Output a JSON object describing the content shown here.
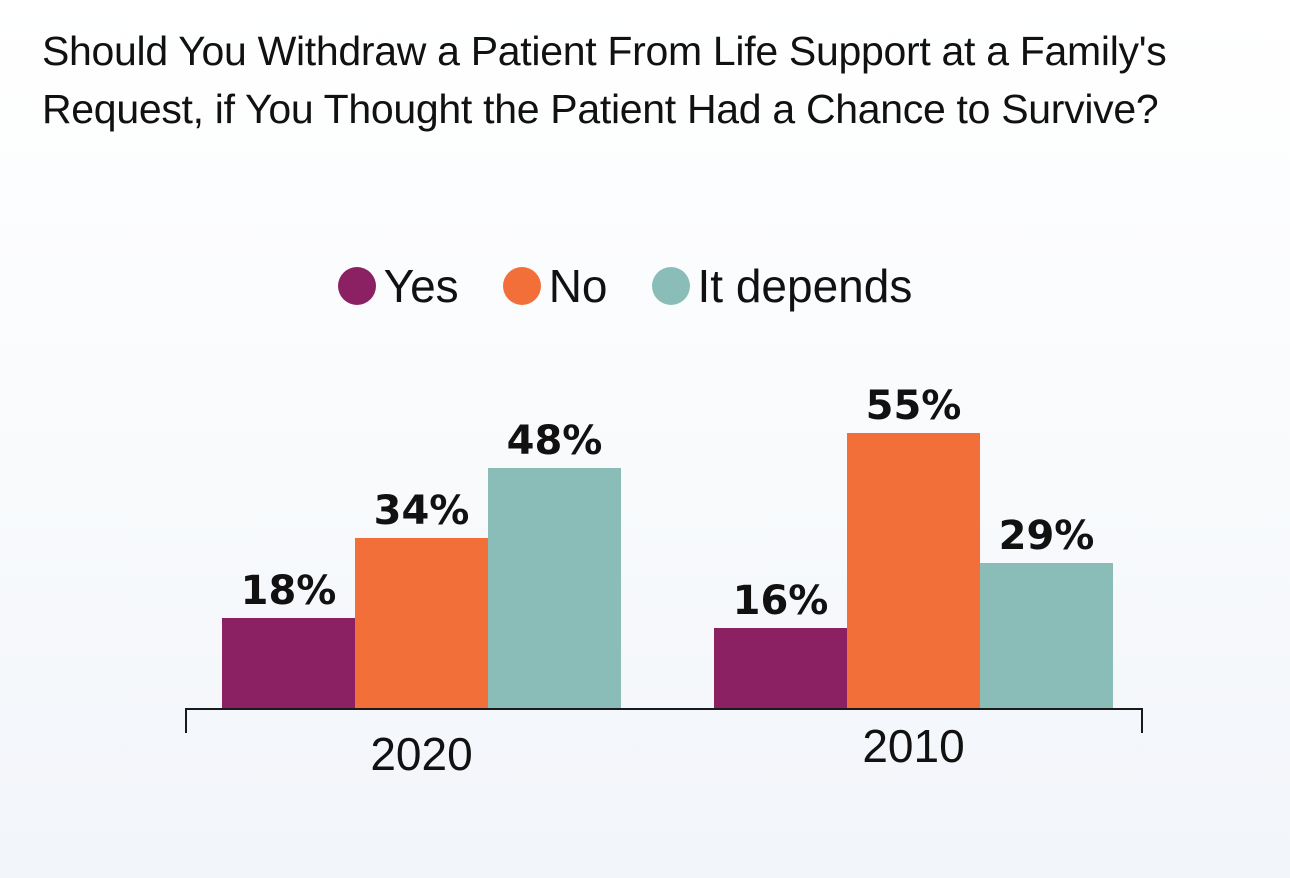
{
  "chart_data": {
    "type": "bar",
    "title": "Should You Withdraw a Patient From Life Support at a Family's Request, if You Thought the Patient Had a Chance to Survive?",
    "categories": [
      "2020",
      "2010"
    ],
    "series": [
      {
        "name": "Yes",
        "color": "#8b2162",
        "values": [
          18,
          16
        ],
        "labels": [
          "18%",
          "16%"
        ]
      },
      {
        "name": "No",
        "color": "#f26f3a",
        "values": [
          34,
          55
        ],
        "labels": [
          "34%",
          "55%"
        ]
      },
      {
        "name": "It depends",
        "color": "#8bbdb8",
        "values": [
          48,
          29
        ],
        "labels": [
          "48%",
          "29%"
        ]
      }
    ],
    "ylim": [
      0,
      100
    ],
    "grid": false,
    "legend_position": "top-center",
    "axis_color": "#1a1a1a"
  }
}
